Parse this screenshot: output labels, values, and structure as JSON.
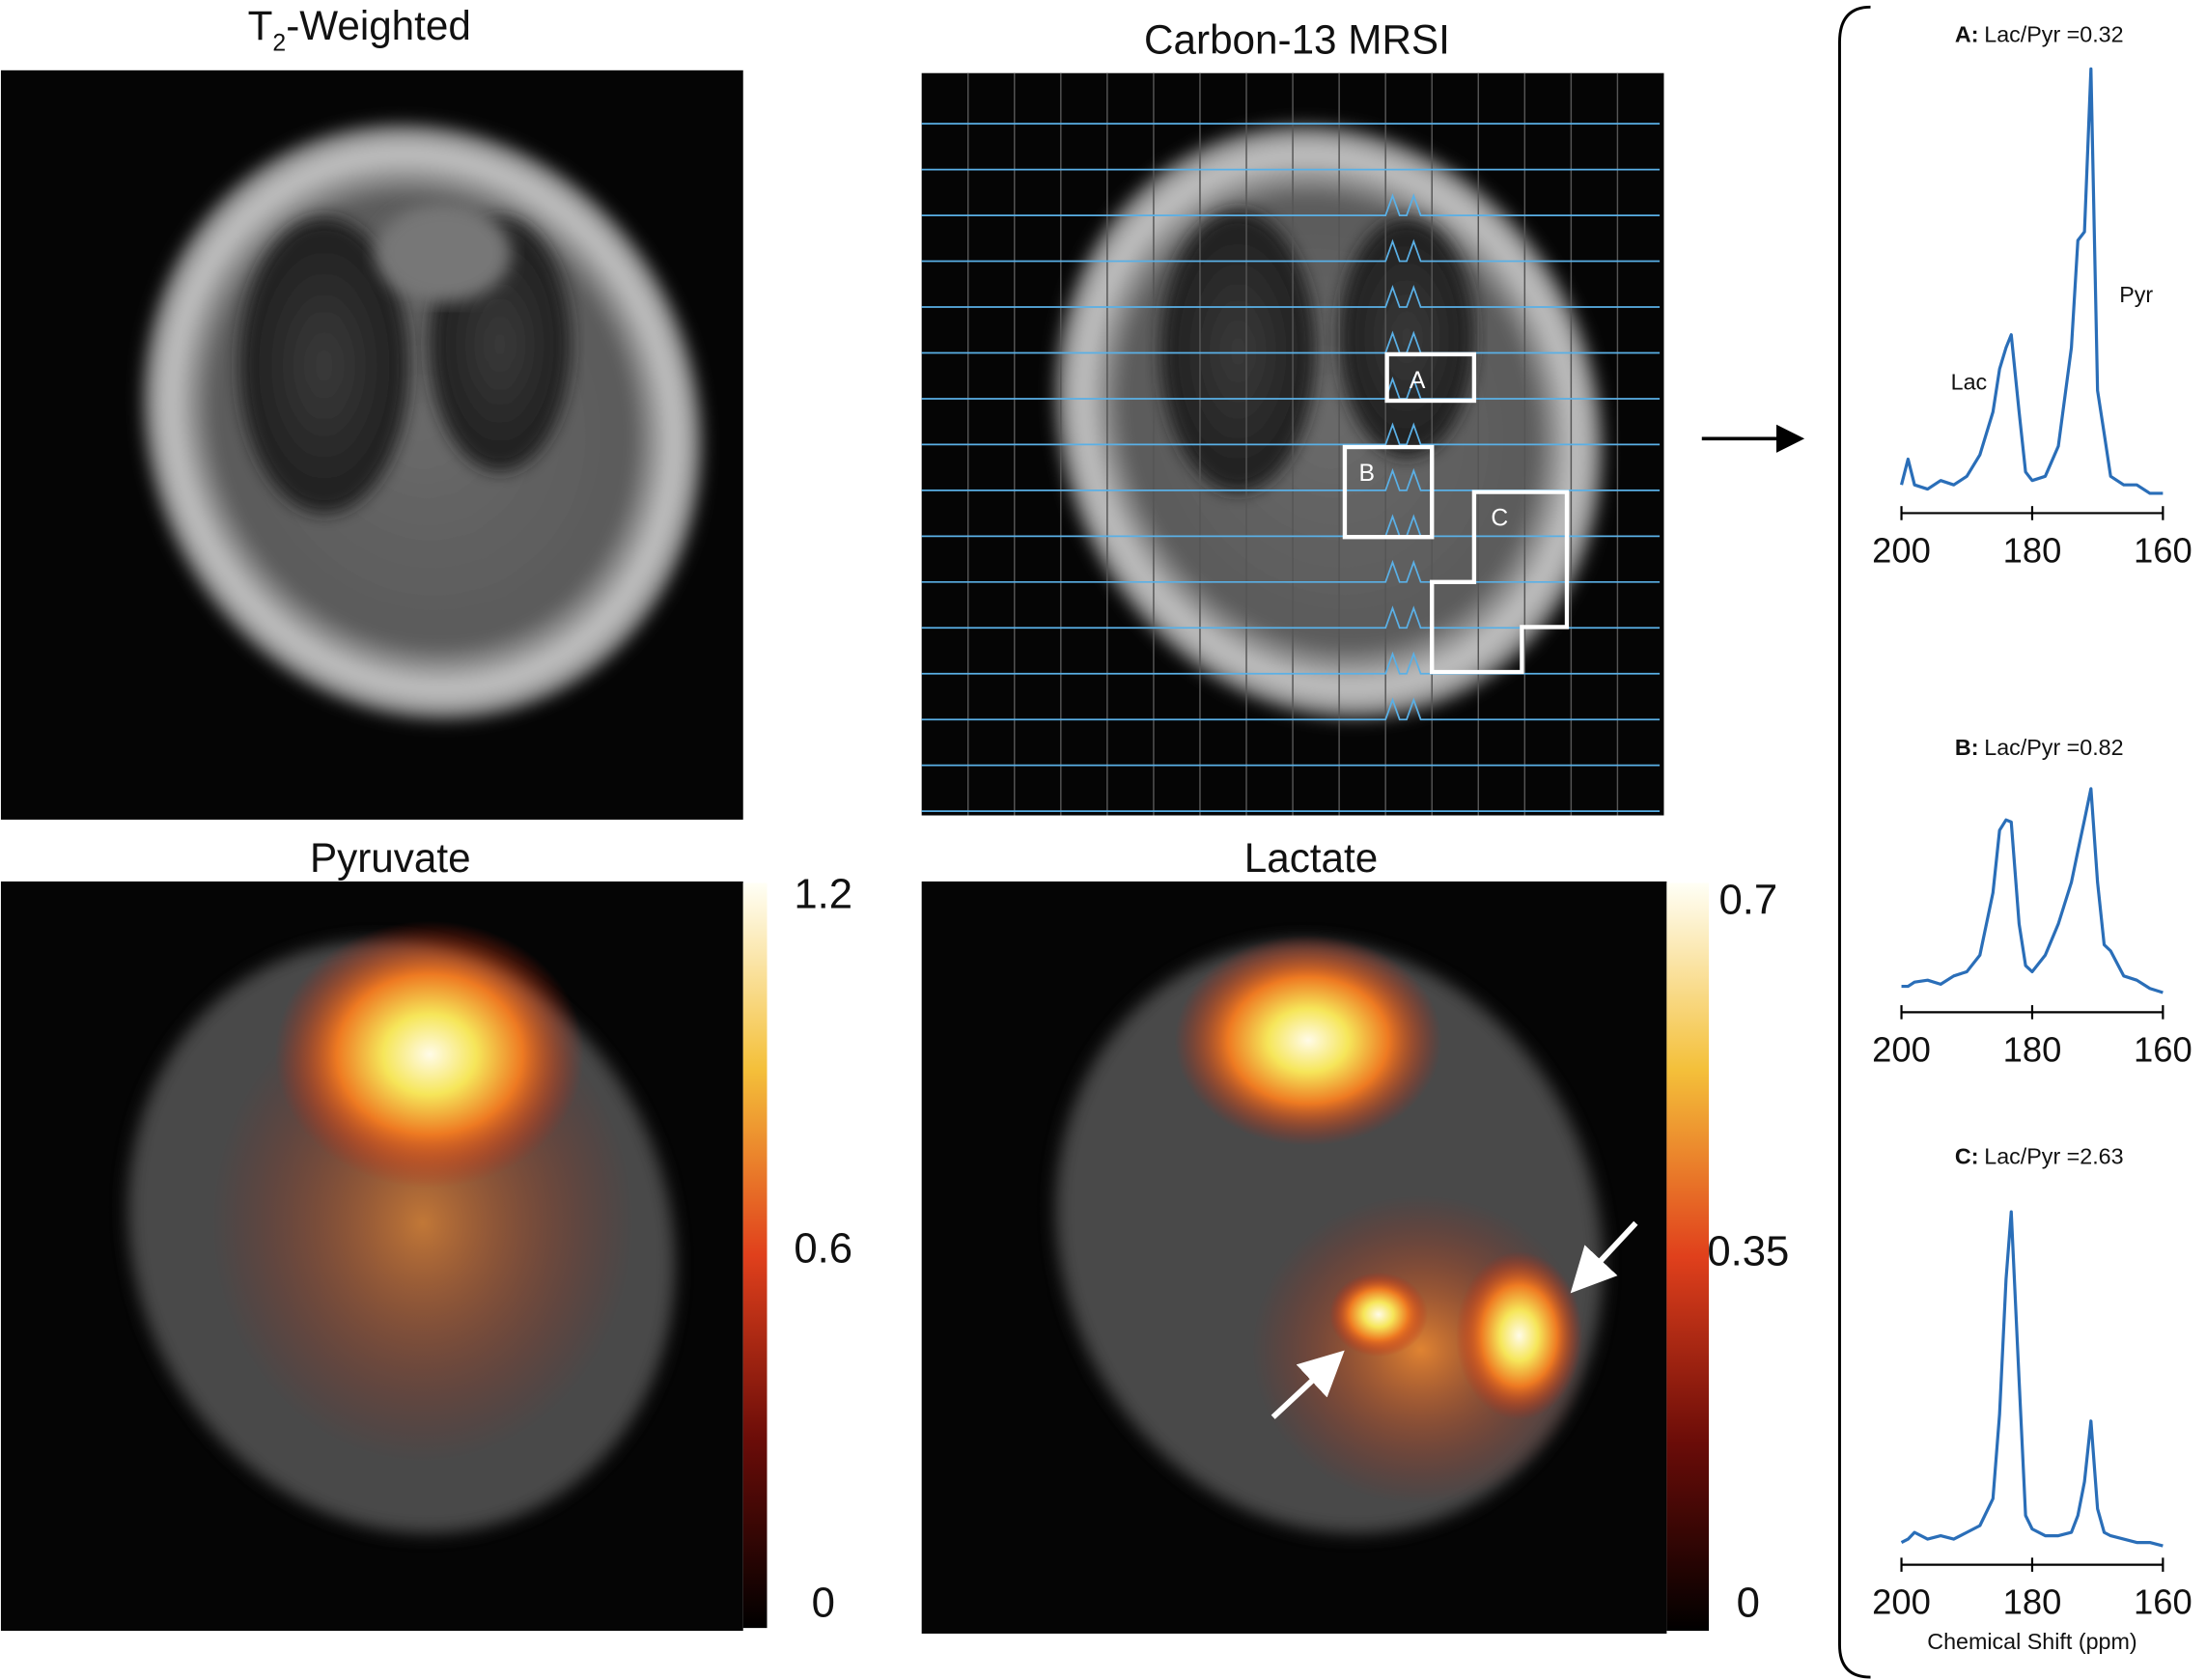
{
  "figure": {
    "panels": {
      "t2": {
        "title_parts": [
          "T",
          "2",
          "-Weighted"
        ]
      },
      "mrsi": {
        "title": "Carbon-13 MRSI",
        "boxes": [
          "A",
          "B",
          "C"
        ]
      },
      "pyruvate": {
        "title": "Pyruvate",
        "colorbar": {
          "lim": [
            0,
            1.2
          ],
          "ticks": [
            1.2,
            0.6,
            0
          ]
        }
      },
      "lactate": {
        "title": "Lactate",
        "colorbar": {
          "lim": [
            0,
            0.7
          ],
          "ticks": [
            0.7,
            0.35,
            0
          ]
        }
      }
    },
    "spectra": {
      "x": [
        200,
        199,
        198,
        196,
        194,
        192,
        190,
        188,
        186,
        185,
        184,
        183.2,
        182,
        181,
        180,
        178,
        176,
        174,
        173,
        172,
        171,
        170,
        169,
        168,
        166,
        164,
        162,
        160
      ],
      "xlim": [
        200,
        160
      ],
      "xticks": [
        200,
        180,
        160
      ],
      "xlabel": "Chemical Shift (ppm)",
      "peak_labels": [
        "Lac",
        "Pyr"
      ],
      "items": [
        {
          "label": "A:",
          "ratio_text": "Lac/Pyr =0.32",
          "values": [
            0.03,
            0.09,
            0.03,
            0.02,
            0.04,
            0.03,
            0.05,
            0.1,
            0.2,
            0.3,
            0.35,
            0.38,
            0.2,
            0.06,
            0.04,
            0.05,
            0.12,
            0.35,
            0.6,
            0.62,
            1.0,
            0.25,
            0.15,
            0.05,
            0.03,
            0.03,
            0.01,
            0.01
          ]
        },
        {
          "label": "B:",
          "ratio_text": "Lac/Pyr =0.82",
          "values": [
            0.05,
            0.05,
            0.07,
            0.08,
            0.06,
            0.1,
            0.12,
            0.2,
            0.5,
            0.8,
            0.85,
            0.84,
            0.35,
            0.15,
            0.12,
            0.2,
            0.35,
            0.55,
            0.7,
            0.85,
            1.0,
            0.55,
            0.25,
            0.22,
            0.1,
            0.08,
            0.04,
            0.02
          ]
        },
        {
          "label": "C:",
          "ratio_text": "Lac/Pyr =2.63",
          "values": [
            0.02,
            0.03,
            0.05,
            0.03,
            0.04,
            0.03,
            0.05,
            0.07,
            0.15,
            0.4,
            0.8,
            1.0,
            0.5,
            0.1,
            0.06,
            0.04,
            0.04,
            0.05,
            0.1,
            0.2,
            0.38,
            0.12,
            0.05,
            0.04,
            0.03,
            0.02,
            0.02,
            0.01
          ]
        }
      ]
    }
  }
}
